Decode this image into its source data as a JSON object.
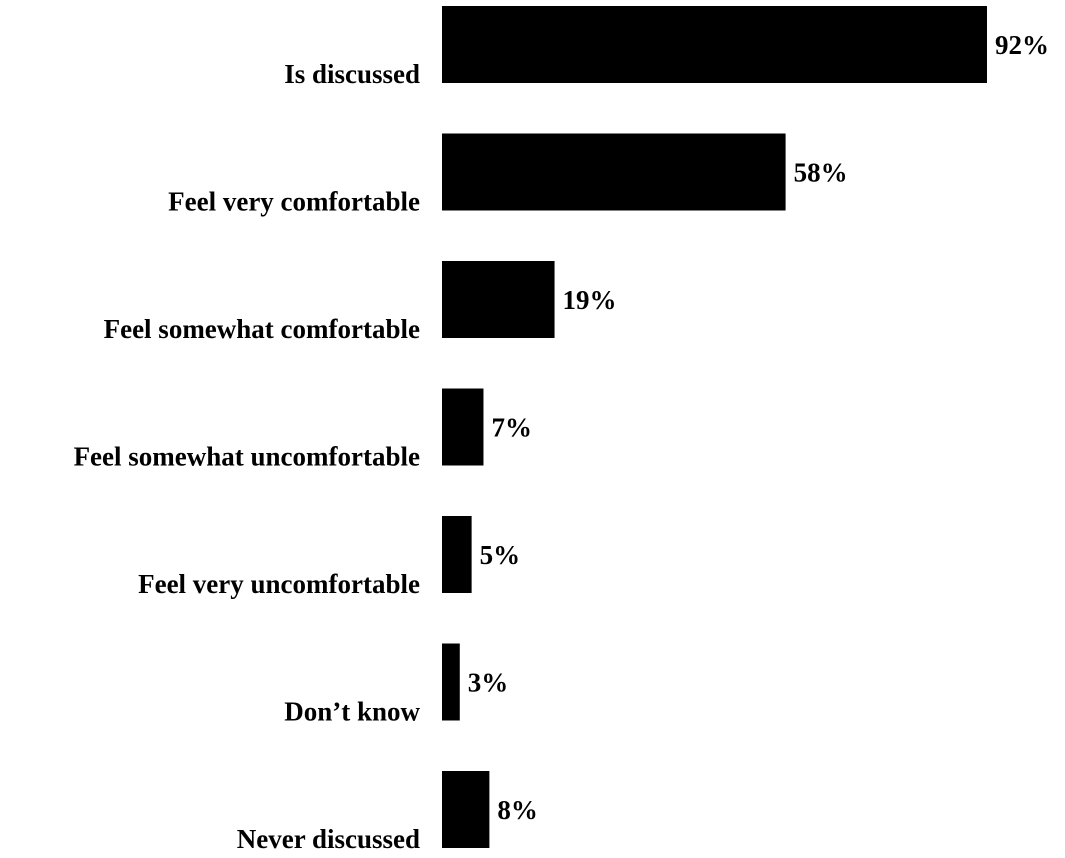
{
  "chart_data": {
    "type": "bar",
    "orientation": "horizontal",
    "categories": [
      "Is discussed",
      "Feel very comfortable",
      "Feel somewhat comfortable",
      "Feel somewhat uncomfortable",
      "Feel very uncomfortable",
      "Don’t know",
      "Never discussed"
    ],
    "values": [
      92,
      58,
      19,
      7,
      5,
      3,
      8
    ],
    "value_labels": [
      "92%",
      "58%",
      "19%",
      "7%",
      "5%",
      "3%",
      "8%"
    ],
    "xlim": [
      0,
      92
    ],
    "grid": false,
    "bar_color": "#000000"
  }
}
